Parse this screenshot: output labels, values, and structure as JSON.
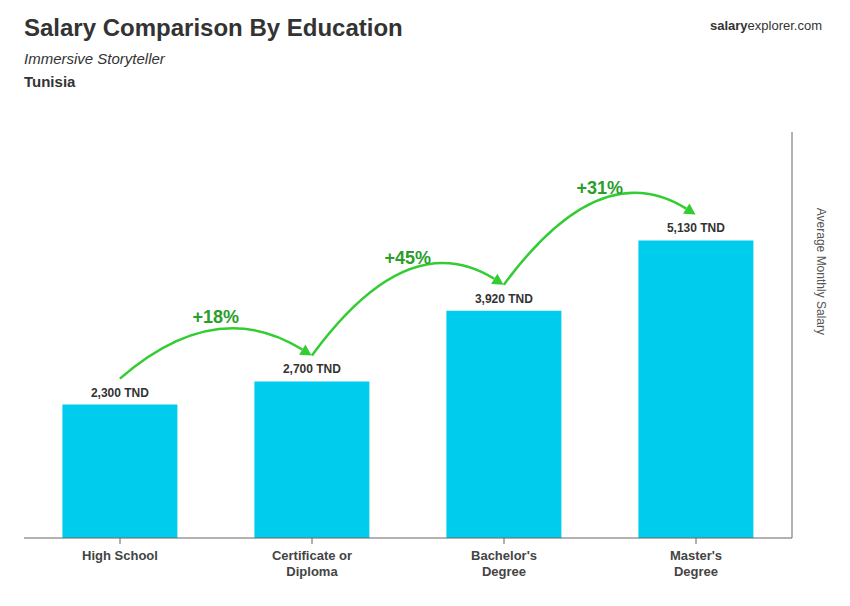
{
  "chart_data": {
    "type": "bar",
    "title": "Salary Comparison By Education",
    "subtitle": "Immersive Storyteller",
    "ylabel": "Average Monthly Salary",
    "categories": [
      "High School",
      "Certificate or\nDiploma",
      "Bachelor's\nDegree",
      "Master's\nDegree"
    ],
    "values": [
      2300,
      2700,
      3920,
      5130
    ],
    "value_labels": [
      "2,300 TND",
      "2,700 TND",
      "3,920 TND",
      "5,130 TND"
    ],
    "data_labels": true,
    "color": "#00CCEE",
    "ylim": [
      0,
      7000
    ],
    "grid": false,
    "tick_labels": "x",
    "annotations": {
      "country": "Tunisia",
      "brand": [
        "salary",
        "explorer",
        ".com"
      ],
      "changes": [
        "+18%",
        "+45%",
        "+31%"
      ]
    }
  }
}
